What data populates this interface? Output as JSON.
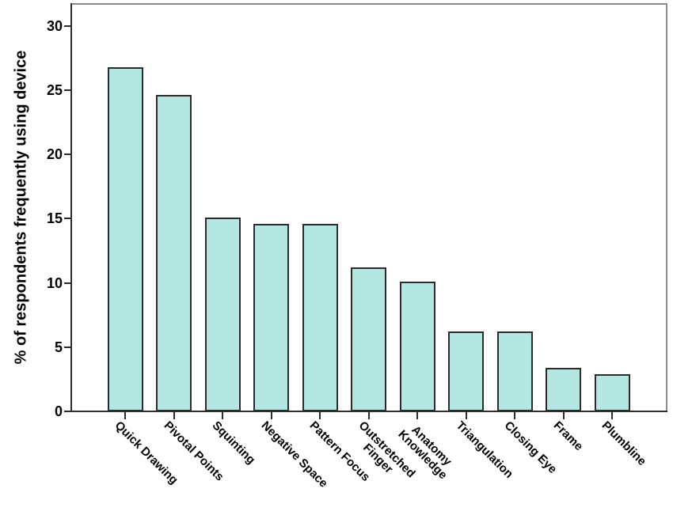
{
  "chart_data": {
    "type": "bar",
    "title": "",
    "xlabel": "",
    "ylabel": "% of respondents frequently using device",
    "categories": [
      "Quick Drawing",
      "Pivotal Points",
      "Squinting",
      "Negative Space",
      "Pattern Focus",
      "Outstretched Finger",
      "Anatomy Knowledge",
      "Triangulation",
      "Closing Eye",
      "Frame",
      "Plumbline"
    ],
    "category_label_lines": [
      [
        "Quick Drawing"
      ],
      [
        "Pivotal Points"
      ],
      [
        "Squinting"
      ],
      [
        "Negative Space"
      ],
      [
        "Pattern Focus"
      ],
      [
        "Outstretched",
        "Finger"
      ],
      [
        "Anatomy",
        "Knowledge"
      ],
      [
        "Triangulation"
      ],
      [
        "Closing Eye"
      ],
      [
        "Frame"
      ],
      [
        "Plumbline"
      ]
    ],
    "values": [
      26.8,
      24.6,
      15.1,
      14.6,
      14.6,
      11.2,
      10.1,
      6.2,
      6.2,
      3.4,
      2.9
    ],
    "yticks": [
      0,
      5,
      10,
      15,
      20,
      25,
      30
    ],
    "ylim": [
      0,
      31.7
    ],
    "x_tick_label_rotation_deg": 45,
    "grid": false,
    "legend": null,
    "colors": {
      "bar_fill": "#b4e6e2",
      "bar_stroke": "#2b2b2b",
      "axis": "#2b2b2b",
      "frame": "#8a8a8a",
      "text": "#000000",
      "background": "#ffffff"
    }
  }
}
